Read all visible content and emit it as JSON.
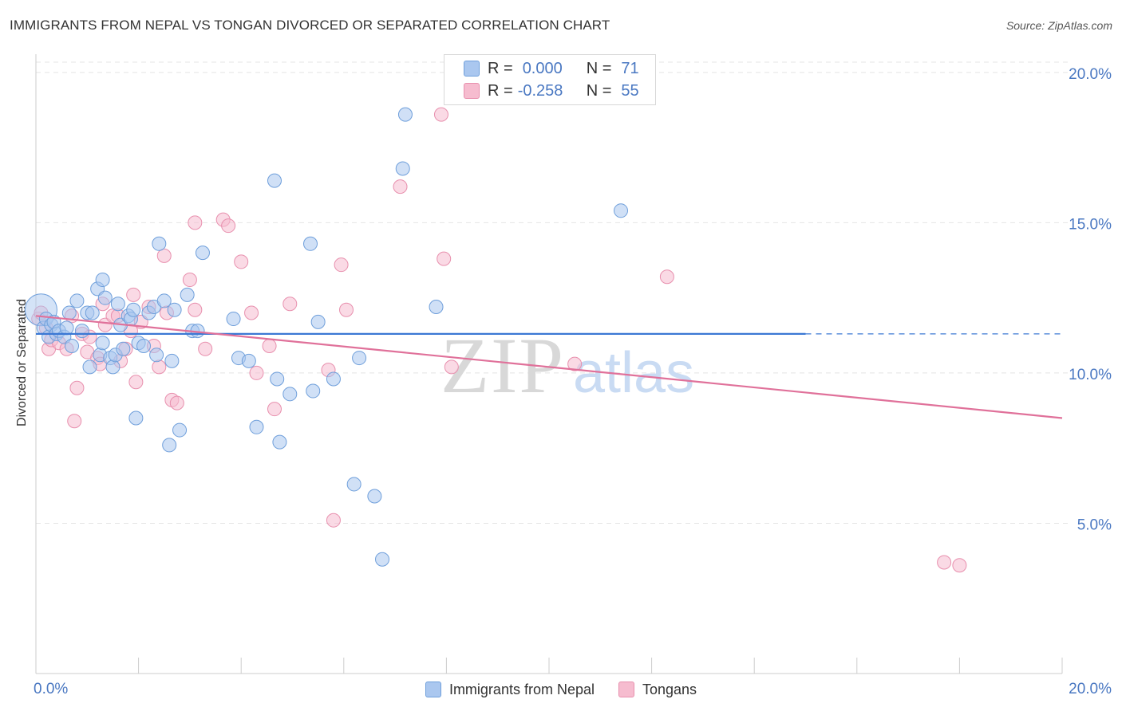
{
  "title": "IMMIGRANTS FROM NEPAL VS TONGAN DIVORCED OR SEPARATED CORRELATION CHART",
  "source": "Source: ZipAtlas.com",
  "colors": {
    "nepal_fill": "#aac7ef",
    "nepal_stroke": "#6f9fdb",
    "nepal_line": "#3b78d4",
    "tongan_fill": "#f6bccf",
    "tongan_stroke": "#e890ae",
    "tongan_line": "#e0719a",
    "axis_text": "#4a78c2"
  },
  "stats": {
    "r_label": "R =",
    "n_label": "N =",
    "nepal_r": "0.000",
    "nepal_n": "71",
    "tongan_r": "-0.258",
    "tongan_n": "55"
  },
  "chart_data": {
    "type": "scatter",
    "title": "IMMIGRANTS FROM NEPAL VS TONGAN DIVORCED OR SEPARATED CORRELATION CHART",
    "xlabel": "",
    "ylabel": "Divorced or Separated",
    "xlim": [
      0,
      20
    ],
    "ylim": [
      0,
      20.5
    ],
    "x_tick_labels": [
      "0.0%",
      "20.0%"
    ],
    "y_ticks": [
      5,
      10,
      15,
      20
    ],
    "y_tick_labels": [
      "5.0%",
      "10.0%",
      "15.0%",
      "20.0%"
    ],
    "grid": true,
    "legend_position": "bottom",
    "watermark": "ZIPatlas",
    "series": [
      {
        "name": "Immigrants from Nepal",
        "trend": {
          "x": [
            0,
            15
          ],
          "y": [
            11.3,
            11.3
          ],
          "dashed_to": 20
        },
        "points": [
          [
            0.1,
            12.1
          ],
          [
            0.15,
            11.5
          ],
          [
            0.2,
            11.8
          ],
          [
            0.25,
            11.2
          ],
          [
            0.3,
            11.6
          ],
          [
            0.35,
            11.7
          ],
          [
            0.4,
            11.3
          ],
          [
            0.45,
            11.4
          ],
          [
            0.55,
            11.2
          ],
          [
            0.6,
            11.5
          ],
          [
            0.65,
            12.0
          ],
          [
            0.7,
            10.9
          ],
          [
            0.8,
            12.4
          ],
          [
            0.9,
            11.4
          ],
          [
            1.0,
            12.0
          ],
          [
            1.05,
            10.2
          ],
          [
            1.1,
            12.0
          ],
          [
            1.2,
            12.8
          ],
          [
            1.25,
            10.6
          ],
          [
            1.3,
            11.0
          ],
          [
            1.3,
            13.1
          ],
          [
            1.35,
            12.5
          ],
          [
            1.45,
            10.5
          ],
          [
            1.5,
            10.2
          ],
          [
            1.55,
            10.6
          ],
          [
            1.6,
            12.3
          ],
          [
            1.65,
            11.6
          ],
          [
            1.7,
            10.8
          ],
          [
            1.8,
            11.9
          ],
          [
            1.85,
            11.8
          ],
          [
            1.9,
            12.1
          ],
          [
            1.95,
            8.5
          ],
          [
            2.0,
            11.0
          ],
          [
            2.1,
            10.9
          ],
          [
            2.2,
            12.0
          ],
          [
            2.3,
            12.2
          ],
          [
            2.35,
            10.6
          ],
          [
            2.4,
            14.3
          ],
          [
            2.5,
            12.4
          ],
          [
            2.6,
            7.6
          ],
          [
            2.65,
            10.4
          ],
          [
            2.7,
            12.1
          ],
          [
            2.8,
            8.1
          ],
          [
            2.95,
            12.6
          ],
          [
            3.05,
            11.4
          ],
          [
            3.15,
            11.4
          ],
          [
            3.25,
            14.0
          ],
          [
            3.85,
            11.8
          ],
          [
            3.95,
            10.5
          ],
          [
            4.15,
            10.4
          ],
          [
            4.3,
            8.2
          ],
          [
            4.65,
            16.4
          ],
          [
            4.7,
            9.8
          ],
          [
            4.75,
            7.7
          ],
          [
            4.95,
            9.3
          ],
          [
            5.35,
            14.3
          ],
          [
            5.4,
            9.4
          ],
          [
            5.5,
            11.7
          ],
          [
            5.8,
            9.8
          ],
          [
            6.2,
            6.3
          ],
          [
            6.3,
            10.5
          ],
          [
            6.6,
            5.9
          ],
          [
            6.75,
            3.8
          ],
          [
            7.15,
            16.8
          ],
          [
            7.2,
            18.6
          ],
          [
            7.8,
            12.2
          ],
          [
            11.4,
            15.4
          ]
        ],
        "large_points": [
          [
            0.1,
            12.1
          ]
        ]
      },
      {
        "name": "Tongans",
        "trend": {
          "x": [
            0,
            20
          ],
          "y": [
            11.9,
            8.5
          ]
        },
        "points": [
          [
            0.05,
            11.8
          ],
          [
            0.1,
            12.0
          ],
          [
            0.2,
            11.5
          ],
          [
            0.25,
            10.8
          ],
          [
            0.3,
            11.1
          ],
          [
            0.45,
            11.0
          ],
          [
            0.6,
            10.8
          ],
          [
            0.7,
            11.9
          ],
          [
            0.75,
            8.4
          ],
          [
            0.8,
            9.5
          ],
          [
            0.9,
            11.3
          ],
          [
            1.0,
            10.7
          ],
          [
            1.05,
            11.2
          ],
          [
            1.2,
            10.5
          ],
          [
            1.25,
            10.3
          ],
          [
            1.3,
            12.3
          ],
          [
            1.35,
            11.6
          ],
          [
            1.5,
            11.9
          ],
          [
            1.6,
            11.9
          ],
          [
            1.65,
            10.4
          ],
          [
            1.75,
            10.8
          ],
          [
            1.85,
            11.4
          ],
          [
            1.9,
            12.6
          ],
          [
            1.95,
            9.7
          ],
          [
            2.05,
            11.7
          ],
          [
            2.2,
            12.2
          ],
          [
            2.3,
            10.9
          ],
          [
            2.4,
            10.2
          ],
          [
            2.5,
            13.9
          ],
          [
            2.55,
            12.0
          ],
          [
            2.65,
            9.1
          ],
          [
            2.75,
            9.0
          ],
          [
            3.0,
            13.1
          ],
          [
            3.1,
            12.1
          ],
          [
            3.3,
            10.8
          ],
          [
            3.1,
            15.0
          ],
          [
            3.65,
            15.1
          ],
          [
            3.75,
            14.9
          ],
          [
            4.0,
            13.7
          ],
          [
            4.2,
            12.0
          ],
          [
            4.3,
            10.0
          ],
          [
            4.55,
            10.9
          ],
          [
            4.65,
            8.8
          ],
          [
            4.95,
            12.3
          ],
          [
            5.7,
            10.1
          ],
          [
            5.8,
            5.1
          ],
          [
            5.95,
            13.6
          ],
          [
            6.05,
            12.1
          ],
          [
            7.1,
            16.2
          ],
          [
            7.9,
            18.6
          ],
          [
            7.95,
            13.8
          ],
          [
            8.1,
            10.2
          ],
          [
            10.5,
            10.3
          ],
          [
            12.3,
            13.2
          ],
          [
            17.7,
            3.7
          ],
          [
            18.0,
            3.6
          ]
        ]
      }
    ]
  }
}
